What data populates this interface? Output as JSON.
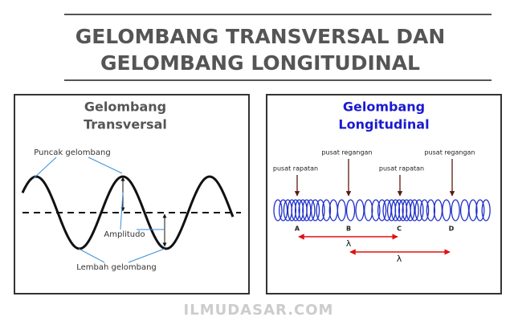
{
  "header": {
    "title_lines": [
      "GELOMBANG TRANSVERSAL DAN",
      "GELOMBANG LONGITUDINAL"
    ]
  },
  "panels": [
    {
      "title_lines": [
        "Gelombang",
        "Transversal"
      ],
      "labels": [
        "Puncak gelombang",
        "Amplitudo",
        "Lembah gelombang"
      ]
    },
    {
      "title_lines": [
        "Gelombang",
        "Longitudinal"
      ],
      "labels": [
        "pusat regangan",
        "pusat rapatan",
        "pusat rapatan",
        "pusat regangan"
      ],
      "points": [
        "A",
        "B",
        "C",
        "D"
      ],
      "wavelength": [
        "λ",
        "λ"
      ]
    }
  ],
  "footer": "ILMUDASAR.COM"
}
